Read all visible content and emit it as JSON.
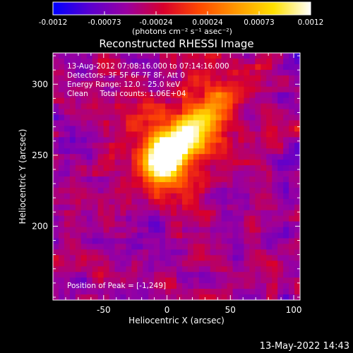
{
  "chart_data": {
    "type": "heatmap",
    "title": "Reconstructed RHESSI Image",
    "xlabel": "Heliocentric X (arcsec)",
    "ylabel": "Heliocentric Y (arcsec)",
    "xlim": [
      -90,
      105
    ],
    "ylim": [
      148,
      322
    ],
    "x_ticks": [
      -50,
      0,
      50,
      100
    ],
    "y_ticks": [
      200,
      250,
      300
    ],
    "colorbar": {
      "range": [
        -0.0012,
        0.0012
      ],
      "tick_labels": [
        "-0.0012",
        "-0.00073",
        "-0.00024",
        "0.00024",
        "0.00073",
        "0.0012"
      ],
      "unit_label": "(photons cm⁻² s⁻¹ asec⁻²)",
      "colormap": [
        "#0000ff",
        "#5a00d0",
        "#9a00a0",
        "#d8002c",
        "#ff4a00",
        "#ff9a00",
        "#ffe000",
        "#ffffff"
      ]
    },
    "info_lines": [
      "13-Aug-2012 07:08:16.000 to 07:14:16.000",
      "Detectors: 3F 5F 6F 7F 8F, Att 0",
      "Energy Range: 12.0 - 25.0 keV",
      "Clean     Total counts: 1.06E+04"
    ],
    "peak_label": "Position of Peak = [-1,249]",
    "peak": {
      "x": -1,
      "y": 249
    },
    "source_axis_end": {
      "x": 58,
      "y": 300
    }
  },
  "footer_timestamp": "13-May-2022 14:43"
}
